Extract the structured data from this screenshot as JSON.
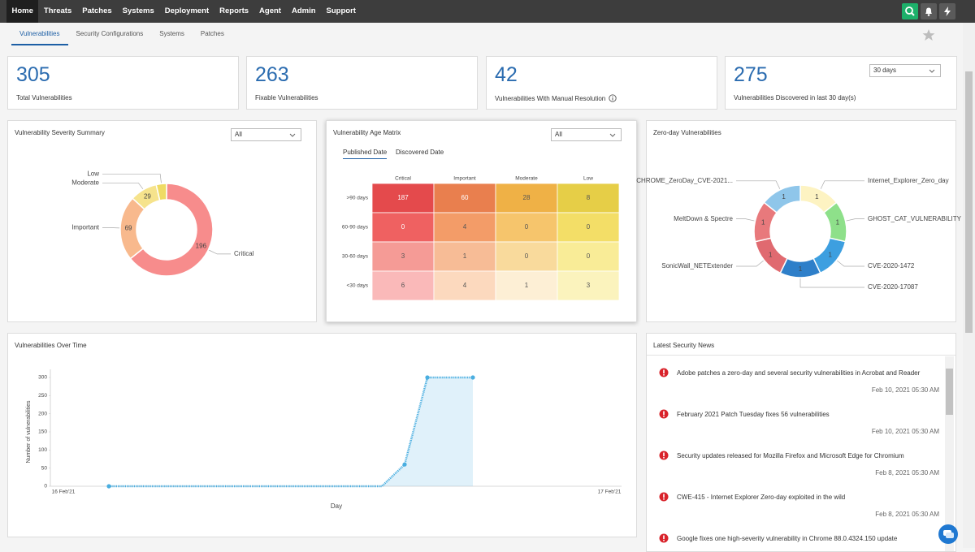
{
  "nav": {
    "items": [
      "Home",
      "Threats",
      "Patches",
      "Systems",
      "Deployment",
      "Reports",
      "Agent",
      "Admin",
      "Support"
    ]
  },
  "tabs": [
    "Vulnerabilities",
    "Security Configurations",
    "Systems",
    "Patches"
  ],
  "cards": [
    {
      "value": 305,
      "label": "Total Vulnerabilities"
    },
    {
      "value": 263,
      "label": "Fixable Vulnerabilities"
    },
    {
      "value": 42,
      "label": "Vulnerabilities With Manual Resolution"
    },
    {
      "value": 275,
      "label": "Vulnerabilities Discovered in last 30 day(s)"
    }
  ],
  "range_select": "30 days",
  "news": {
    "title": "Latest Security News",
    "items": [
      {
        "title": "Adobe patches a zero-day and several security vulnerabilities in Acrobat and Reader",
        "date": "Feb 10, 2021 05:30 AM"
      },
      {
        "title": "February 2021 Patch Tuesday fixes 56 vulnerabilities",
        "date": "Feb 10, 2021 05:30 AM"
      },
      {
        "title": "Security updates released for Mozilla Firefox and Microsoft Edge for Chromium",
        "date": "Feb 8, 2021 05:30 AM"
      },
      {
        "title": "CWE-415 - Internet Explorer Zero-day exploited in the wild",
        "date": "Feb 8, 2021 05:30 AM"
      },
      {
        "title": "Google fixes one high-severity vulnerability in Chrome 88.0.4324.150 update"
      }
    ]
  },
  "chart_data": [
    {
      "type": "pie",
      "title": "Vulnerability Severity Summary",
      "filter": "All",
      "categories": [
        "Critical",
        "Important",
        "Moderate",
        "Low"
      ],
      "values": [
        196,
        69,
        29,
        11
      ],
      "colors": [
        "#f78c8c",
        "#f8b98d",
        "#f6e38c",
        "#efdb64"
      ]
    },
    {
      "type": "heatmap",
      "title": "Vulnerability Age Matrix",
      "filter": "All",
      "tabs": [
        "Published Date",
        "Discovered Date"
      ],
      "columns": [
        "Critical",
        "Important",
        "Moderate",
        "Low"
      ],
      "rows": [
        ">90 days",
        "60-90 days",
        "30-60 days",
        "<30 days"
      ],
      "values": [
        [
          187,
          60,
          28,
          8
        ],
        [
          0,
          4,
          0,
          0
        ],
        [
          3,
          1,
          0,
          0
        ],
        [
          6,
          4,
          1,
          3
        ]
      ],
      "colors": [
        [
          "#e44a4c",
          "#e97f4e",
          "#efb146",
          "#e6ce47"
        ],
        [
          "#ef6161",
          "#f39c68",
          "#f6c56c",
          "#f3de67"
        ],
        [
          "#f59b96",
          "#f7bc96",
          "#f9da9c",
          "#f9ec97"
        ],
        [
          "#fab9b9",
          "#fcd9be",
          "#fdefd5",
          "#fbf3bd"
        ]
      ]
    },
    {
      "type": "pie",
      "title": "Zero-day Vulnerabilities",
      "categories": [
        "Internet_Explorer_Zero_day",
        "GHOST_CAT_VULNERABILITY",
        "CVE-2020-1472",
        "CVE-2020-17087",
        "SonicWall_NETExtender",
        "MeltDown & Spectre",
        "CHROME_ZeroDay_CVE-2021..."
      ],
      "values": [
        1,
        1,
        1,
        1,
        1,
        1,
        1
      ],
      "colors": [
        "#fdf3c2",
        "#8ee08a",
        "#3d9fe0",
        "#2e7fc9",
        "#e06a70",
        "#e8797c",
        "#8fc6ea"
      ]
    },
    {
      "type": "line",
      "title": "Vulnerabilities Over Time",
      "categories": [
        "16 Feb'21",
        null,
        null,
        null,
        null,
        null,
        null,
        null,
        null,
        null,
        null,
        null,
        null,
        null,
        null,
        null,
        null,
        null,
        null,
        null,
        null,
        null,
        null,
        null,
        "17 Feb'21"
      ],
      "values": [
        null,
        null,
        0,
        0,
        0,
        0,
        0,
        0,
        0,
        0,
        0,
        0,
        0,
        0,
        0,
        60,
        300,
        300,
        300,
        null,
        null,
        null,
        null,
        null,
        null
      ],
      "color": "#4aaee0",
      "xlabel": "Day",
      "ylabel": "Number of vulnerabilities",
      "ylim": [
        0,
        300
      ],
      "yticks": [
        0,
        50,
        100,
        150,
        200,
        250,
        300
      ],
      "grid": false
    }
  ]
}
